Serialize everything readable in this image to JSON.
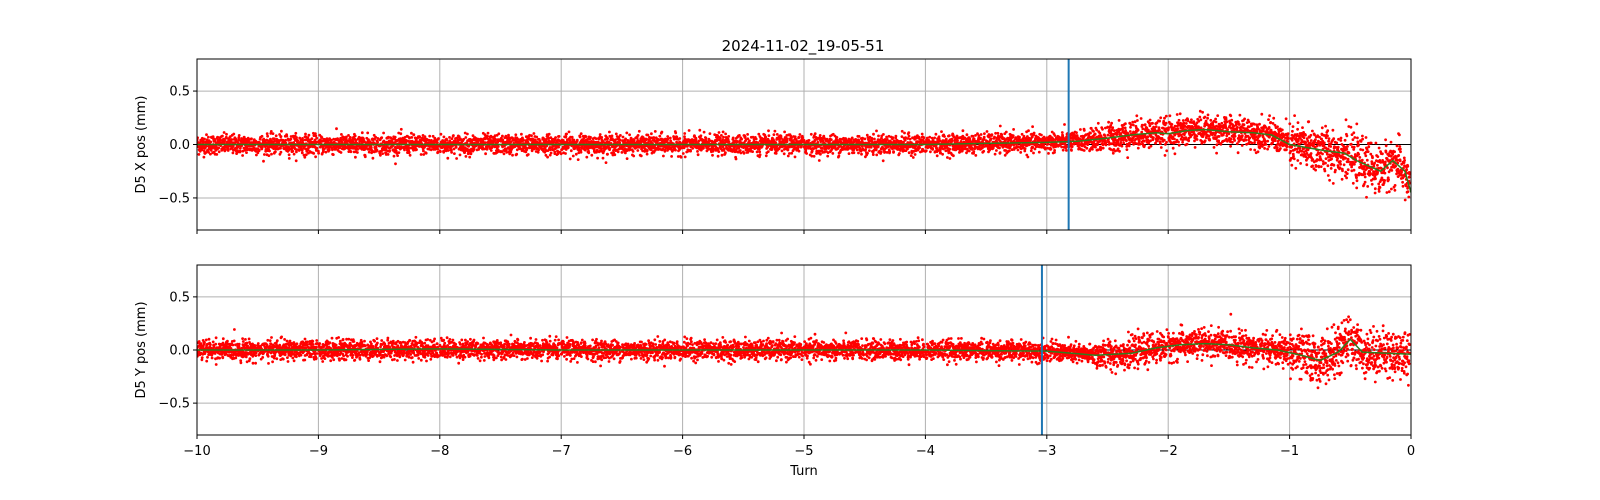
{
  "figure": {
    "title": "2024-11-02_19-05-51"
  },
  "colors": {
    "points": "#ff0000",
    "smooth": "#2e7d1e",
    "marker": "#1f77b4",
    "grid": "#b0b0b0",
    "zero_line": "#000000"
  },
  "chart_data": [
    {
      "type": "scatter",
      "title": "2024-11-02_19-05-51",
      "xlabel": "",
      "ylabel": "D5 X pos (mm)",
      "xlim": [
        -10,
        0
      ],
      "ylim": [
        -0.8,
        0.8
      ],
      "x_ticks": [
        -10,
        -9,
        -8,
        -7,
        -6,
        -5,
        -4,
        -3,
        -2,
        -1,
        0
      ],
      "y_ticks": [
        -0.5,
        0.0,
        0.5
      ],
      "y_tick_labels": [
        "−0.5",
        "0.0",
        "0.5"
      ],
      "grid": true,
      "x_tick_labels_visible": false,
      "vertical_marker_x": -2.82,
      "point_spread": 0.045,
      "trend": [
        [
          -10,
          0.0
        ],
        [
          -9,
          0.0
        ],
        [
          -8,
          0.0
        ],
        [
          -7,
          0.0
        ],
        [
          -6,
          0.0
        ],
        [
          -5,
          0.0
        ],
        [
          -4,
          0.0
        ],
        [
          -3.5,
          0.01
        ],
        [
          -3.0,
          0.02
        ],
        [
          -2.75,
          0.03
        ],
        [
          -2.5,
          0.06
        ],
        [
          -2.3,
          0.09
        ],
        [
          -2.1,
          0.11
        ],
        [
          -2.0,
          0.1
        ],
        [
          -1.85,
          0.13
        ],
        [
          -1.7,
          0.14
        ],
        [
          -1.5,
          0.12
        ],
        [
          -1.3,
          0.11
        ],
        [
          -1.15,
          0.09
        ],
        [
          -1.0,
          0.0
        ],
        [
          -0.85,
          -0.03
        ],
        [
          -0.7,
          -0.06
        ],
        [
          -0.55,
          -0.08
        ],
        [
          -0.45,
          -0.15
        ],
        [
          -0.35,
          -0.2
        ],
        [
          -0.25,
          -0.25
        ],
        [
          -0.15,
          -0.15
        ],
        [
          -0.05,
          -0.25
        ],
        [
          0.0,
          -0.45
        ]
      ]
    },
    {
      "type": "scatter",
      "xlabel": "Turn",
      "ylabel": "D5 Y pos (mm)",
      "xlim": [
        -10,
        0
      ],
      "ylim": [
        -0.8,
        0.8
      ],
      "x_ticks": [
        -10,
        -9,
        -8,
        -7,
        -6,
        -5,
        -4,
        -3,
        -2,
        -1,
        0
      ],
      "x_tick_labels": [
        "−10",
        "−9",
        "−8",
        "−7",
        "−6",
        "−5",
        "−4",
        "−3",
        "−2",
        "−1",
        "0"
      ],
      "y_ticks": [
        -0.5,
        0.0,
        0.5
      ],
      "y_tick_labels": [
        "−0.5",
        "0.0",
        "0.5"
      ],
      "grid": true,
      "x_tick_labels_visible": true,
      "vertical_marker_x": -3.04,
      "point_spread": 0.045,
      "trend": [
        [
          -10,
          0.0
        ],
        [
          -9,
          0.0
        ],
        [
          -8,
          0.01
        ],
        [
          -7,
          0.0
        ],
        [
          -6,
          0.0
        ],
        [
          -5,
          0.0
        ],
        [
          -4,
          0.0
        ],
        [
          -3.0,
          -0.01
        ],
        [
          -2.6,
          -0.05
        ],
        [
          -2.3,
          -0.03
        ],
        [
          -2.1,
          0.02
        ],
        [
          -1.9,
          0.05
        ],
        [
          -1.7,
          0.06
        ],
        [
          -1.5,
          0.05
        ],
        [
          -1.3,
          0.02
        ],
        [
          -1.1,
          0.0
        ],
        [
          -0.9,
          -0.05
        ],
        [
          -0.75,
          -0.1
        ],
        [
          -0.6,
          -0.02
        ],
        [
          -0.5,
          0.1
        ],
        [
          -0.4,
          -0.02
        ],
        [
          -0.2,
          -0.03
        ],
        [
          0.0,
          -0.04
        ]
      ]
    }
  ]
}
